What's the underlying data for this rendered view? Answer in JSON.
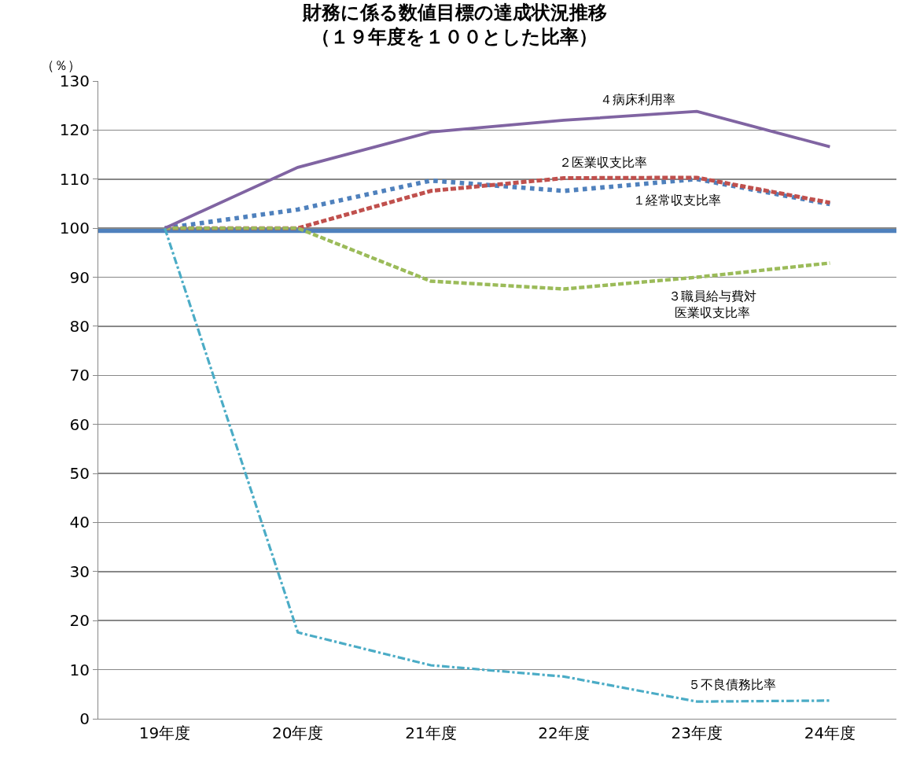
{
  "chart_data": {
    "type": "line",
    "title": "財務に係る数値目標の達成状況推移",
    "subtitle": "（１９年度を１００とした比率）",
    "ylabel": "（％）",
    "categories": [
      "19年度",
      "20年度",
      "21年度",
      "22年度",
      "23年度",
      "24年度"
    ],
    "series": [
      {
        "name": "１経常収支比率",
        "color": "#4f81bd",
        "line_style": "dotted",
        "values": [
          100,
          103.8,
          109.7,
          107.6,
          110,
          104.9
        ]
      },
      {
        "name": "２医業収支比率",
        "color": "#c0504d",
        "line_style": "dashed",
        "values": [
          100,
          100,
          107.6,
          110.2,
          110.3,
          105.2
        ]
      },
      {
        "name": "３職員給与費対医業収支比率",
        "color": "#9bbb59",
        "line_style": "dashed",
        "values": [
          100,
          100,
          89.2,
          87.6,
          90,
          92.9
        ]
      },
      {
        "name": "４病床利用率",
        "color": "#8064a2",
        "line_style": "solid",
        "values": [
          100,
          112.4,
          119.6,
          122,
          123.8,
          116.6
        ]
      },
      {
        "name": "５不良債務比率",
        "color": "#4bacc6",
        "line_style": "dashdot",
        "values": [
          100,
          17.6,
          10.9,
          8.6,
          3.5,
          3.7
        ]
      }
    ],
    "ref_lines": [
      {
        "axis": "y",
        "value": 99.5,
        "color": "#4f81bd",
        "line_style": "solid"
      }
    ],
    "ylim": [
      0,
      130
    ],
    "yticks": [
      0,
      10,
      20,
      30,
      40,
      50,
      60,
      70,
      80,
      90,
      100,
      110,
      120,
      130
    ],
    "grid": "y",
    "legend": false,
    "marker": "none"
  }
}
